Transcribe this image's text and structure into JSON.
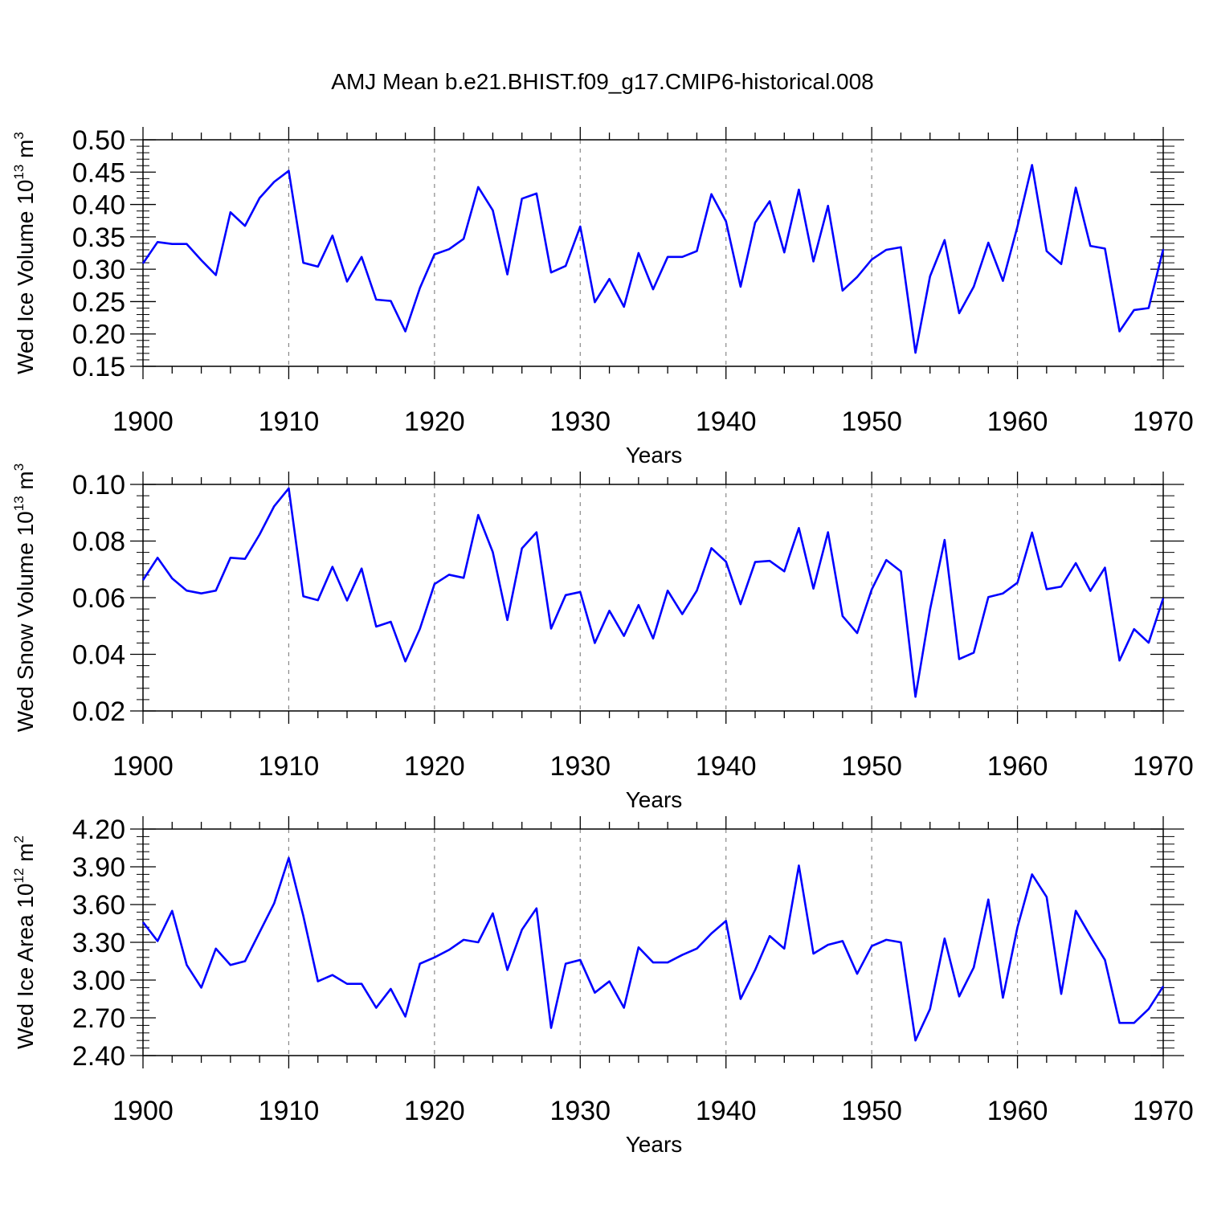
{
  "title": "AMJ Mean b.e21.BHIST.f09_g17.CMIP6-historical.008",
  "line_color": "#0000ff",
  "chart_data": [
    {
      "type": "line",
      "xlabel": "Years",
      "ylabel": {
        "main": "Wed Ice Volume 10",
        "exp": "13",
        "unit_base": " m",
        "unit_exp": "3"
      },
      "xlim": [
        1900,
        1970
      ],
      "ylim": [
        0.15,
        0.5
      ],
      "xticks": [
        "1900",
        "1910",
        "1920",
        "1930",
        "1940",
        "1950",
        "1960",
        "1970"
      ],
      "yticks": [
        "0.50",
        "0.45",
        "0.40",
        "0.35",
        "0.30",
        "0.25",
        "0.20",
        "0.15"
      ],
      "x": [
        1900,
        1901,
        1902,
        1903,
        1904,
        1905,
        1906,
        1907,
        1908,
        1909,
        1910,
        1911,
        1912,
        1913,
        1914,
        1915,
        1916,
        1917,
        1918,
        1919,
        1920,
        1921,
        1922,
        1923,
        1924,
        1925,
        1926,
        1927,
        1928,
        1929,
        1930,
        1931,
        1932,
        1933,
        1934,
        1935,
        1936,
        1937,
        1938,
        1939,
        1940,
        1941,
        1942,
        1943,
        1944,
        1945,
        1946,
        1947,
        1948,
        1949,
        1950,
        1951,
        1952,
        1953,
        1954,
        1955,
        1956,
        1957,
        1958,
        1959,
        1960,
        1961,
        1962,
        1963,
        1964,
        1965,
        1966,
        1967,
        1968,
        1969,
        1970
      ],
      "y": [
        0.309,
        0.342,
        0.339,
        0.339,
        0.314,
        0.291,
        0.388,
        0.367,
        0.41,
        0.435,
        0.452,
        0.31,
        0.304,
        0.352,
        0.281,
        0.319,
        0.253,
        0.251,
        0.204,
        0.271,
        0.323,
        0.331,
        0.347,
        0.427,
        0.391,
        0.292,
        0.409,
        0.417,
        0.295,
        0.305,
        0.366,
        0.249,
        0.285,
        0.242,
        0.325,
        0.269,
        0.319,
        0.319,
        0.328,
        0.416,
        0.374,
        0.273,
        0.372,
        0.405,
        0.326,
        0.423,
        0.312,
        0.398,
        0.267,
        0.288,
        0.315,
        0.33,
        0.334,
        0.171,
        0.289,
        0.345,
        0.232,
        0.273,
        0.341,
        0.282,
        0.366,
        0.461,
        0.328,
        0.308,
        0.426,
        0.336,
        0.332,
        0.204,
        0.237,
        0.24,
        0.331
      ]
    },
    {
      "type": "line",
      "xlabel": "Years",
      "ylabel": {
        "main": "Wed Snow Volume 10",
        "exp": "13",
        "unit_base": " m",
        "unit_exp": "3"
      },
      "xlim": [
        1900,
        1970
      ],
      "ylim": [
        0.02,
        0.1
      ],
      "xticks": [
        "1900",
        "1910",
        "1920",
        "1930",
        "1940",
        "1950",
        "1960",
        "1970"
      ],
      "yticks": [
        "0.10",
        "0.08",
        "0.06",
        "0.04",
        "0.02"
      ],
      "x": [
        1900,
        1901,
        1902,
        1903,
        1904,
        1905,
        1906,
        1907,
        1908,
        1909,
        1910,
        1911,
        1912,
        1913,
        1914,
        1915,
        1916,
        1917,
        1918,
        1919,
        1920,
        1921,
        1922,
        1923,
        1924,
        1925,
        1926,
        1927,
        1928,
        1929,
        1930,
        1931,
        1932,
        1933,
        1934,
        1935,
        1936,
        1937,
        1938,
        1939,
        1940,
        1941,
        1942,
        1943,
        1944,
        1945,
        1946,
        1947,
        1948,
        1949,
        1950,
        1951,
        1952,
        1953,
        1954,
        1955,
        1956,
        1957,
        1958,
        1959,
        1960,
        1961,
        1962,
        1963,
        1964,
        1965,
        1966,
        1967,
        1968,
        1969,
        1970
      ],
      "y": [
        0.0662,
        0.0741,
        0.0668,
        0.0625,
        0.0615,
        0.0625,
        0.0741,
        0.0737,
        0.0823,
        0.0923,
        0.0986,
        0.0605,
        0.0591,
        0.0709,
        0.059,
        0.0703,
        0.0498,
        0.0515,
        0.0375,
        0.049,
        0.0648,
        0.0681,
        0.067,
        0.0892,
        0.0761,
        0.0521,
        0.0774,
        0.0831,
        0.0491,
        0.0609,
        0.062,
        0.044,
        0.0554,
        0.0465,
        0.0574,
        0.0456,
        0.0625,
        0.0542,
        0.0625,
        0.0775,
        0.0727,
        0.0577,
        0.0726,
        0.073,
        0.0693,
        0.0846,
        0.0632,
        0.0831,
        0.0535,
        0.0475,
        0.0629,
        0.0733,
        0.0693,
        0.025,
        0.0558,
        0.0804,
        0.0383,
        0.0406,
        0.0602,
        0.0615,
        0.0653,
        0.083,
        0.063,
        0.0639,
        0.0722,
        0.0624,
        0.0706,
        0.0378,
        0.0489,
        0.0441,
        0.0598
      ]
    },
    {
      "type": "line",
      "xlabel": "Years",
      "ylabel": {
        "main": "Wed Ice Area 10",
        "exp": "12",
        "unit_base": " m",
        "unit_exp": "2"
      },
      "xlim": [
        1900,
        1970
      ],
      "ylim": [
        2.4,
        4.2
      ],
      "xticks": [
        "1900",
        "1910",
        "1920",
        "1930",
        "1940",
        "1950",
        "1960",
        "1970"
      ],
      "yticks": [
        "4.20",
        "3.90",
        "3.60",
        "3.30",
        "3.00",
        "2.70",
        "2.40"
      ],
      "x": [
        1900,
        1901,
        1902,
        1903,
        1904,
        1905,
        1906,
        1907,
        1908,
        1909,
        1910,
        1911,
        1912,
        1913,
        1914,
        1915,
        1916,
        1917,
        1918,
        1919,
        1920,
        1921,
        1922,
        1923,
        1924,
        1925,
        1926,
        1927,
        1928,
        1929,
        1930,
        1931,
        1932,
        1933,
        1934,
        1935,
        1936,
        1937,
        1938,
        1939,
        1940,
        1941,
        1942,
        1943,
        1944,
        1945,
        1946,
        1947,
        1948,
        1949,
        1950,
        1951,
        1952,
        1953,
        1954,
        1955,
        1956,
        1957,
        1958,
        1959,
        1960,
        1961,
        1962,
        1963,
        1964,
        1965,
        1966,
        1967,
        1968,
        1969,
        1970
      ],
      "y": [
        3.46,
        3.31,
        3.55,
        3.12,
        2.94,
        3.25,
        3.12,
        3.15,
        3.38,
        3.61,
        3.97,
        3.51,
        2.99,
        3.04,
        2.97,
        2.97,
        2.78,
        2.93,
        2.71,
        3.13,
        3.18,
        3.24,
        3.32,
        3.3,
        3.53,
        3.08,
        3.4,
        3.57,
        2.62,
        3.13,
        3.16,
        2.9,
        2.99,
        2.78,
        3.26,
        3.14,
        3.14,
        3.2,
        3.25,
        3.37,
        3.47,
        2.85,
        3.08,
        3.35,
        3.25,
        3.91,
        3.21,
        3.28,
        3.31,
        3.05,
        3.27,
        3.32,
        3.3,
        2.52,
        2.77,
        3.33,
        2.87,
        3.1,
        3.64,
        2.86,
        3.42,
        3.84,
        3.66,
        2.89,
        3.55,
        3.35,
        3.16,
        2.66,
        2.66,
        2.77,
        2.95
      ]
    }
  ]
}
